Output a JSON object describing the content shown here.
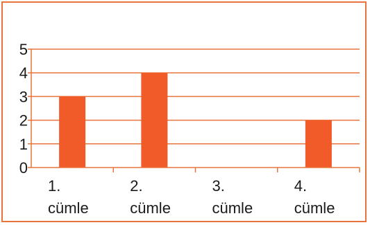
{
  "chart_data": {
    "type": "bar",
    "categories": [
      [
        "1.",
        "cümle"
      ],
      [
        "2.",
        "cümle"
      ],
      [
        "3.",
        "cümle"
      ],
      [
        "4.",
        "cümle"
      ]
    ],
    "values": [
      3,
      4,
      0,
      2
    ],
    "y_ticks": [
      "0",
      "1",
      "2",
      "3",
      "4",
      "5"
    ],
    "ylim": [
      0,
      5
    ],
    "grid": true,
    "bar_color": "#f15a29",
    "grid_color": "#e8743b",
    "axis_color": "#e8743b"
  }
}
